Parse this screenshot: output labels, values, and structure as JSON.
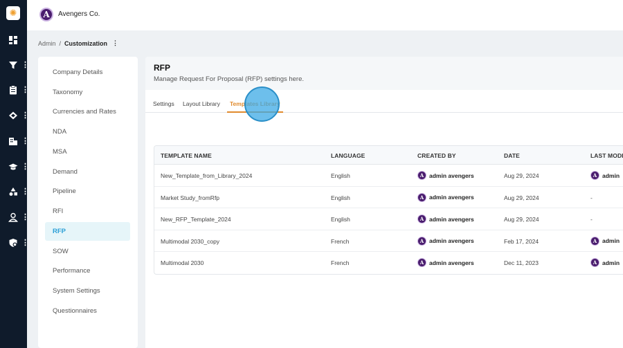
{
  "app": {
    "brand_name": "Avengers Co.",
    "brand_letter": "A"
  },
  "rail": {
    "icons": [
      "dashboard-icon",
      "filter-icon",
      "clipboard-icon",
      "handshake-icon",
      "building-icon",
      "graduation-cap-icon",
      "shapes-icon",
      "user-icon",
      "shield-settings-icon"
    ]
  },
  "breadcrumb": {
    "parent": "Admin",
    "separator": "/",
    "current": "Customization",
    "more": "⋮"
  },
  "menu": {
    "items": [
      "Company Details",
      "Taxonomy",
      "Currencies and Rates",
      "NDA",
      "MSA",
      "Demand",
      "Pipeline",
      "RFI",
      "RFP",
      "SOW",
      "Performance",
      "System Settings",
      "Questionnaires"
    ],
    "active": "RFP"
  },
  "panel": {
    "title": "RFP",
    "subtitle": "Manage Request For Proposal (RFP) settings here.",
    "tabs": [
      "Settings",
      "Layout Library",
      "Templates Library"
    ],
    "active_tab": "Templates Library"
  },
  "table": {
    "headers": [
      "TEMPLATE NAME",
      "LANGUAGE",
      "CREATED BY",
      "DATE",
      "LAST MODI"
    ],
    "rows": [
      {
        "name": "New_Template_from_Library_2024",
        "language": "English",
        "created_by": "admin avengers",
        "date": "Aug 29, 2024",
        "last_modified": "admin"
      },
      {
        "name": "Market Study_fromRfp",
        "language": "English",
        "created_by": "admin avengers",
        "date": "Aug 29, 2024",
        "last_modified": "-"
      },
      {
        "name": "New_RFP_Template_2024",
        "language": "English",
        "created_by": "admin avengers",
        "date": "Aug 29, 2024",
        "last_modified": "-"
      },
      {
        "name": "Multimodal 2030_copy",
        "language": "French",
        "created_by": "admin avengers",
        "date": "Feb 17, 2024",
        "last_modified": "admin"
      },
      {
        "name": "Multimodal 2030",
        "language": "French",
        "created_by": "admin avengers",
        "date": "Dec 11, 2023",
        "last_modified": "admin"
      }
    ]
  },
  "colors": {
    "rail_bg": "#0f1b2b",
    "accent_orange": "#e08a2c",
    "accent_blue": "#2a9fd6",
    "avatar_purple": "#4a1d6e"
  }
}
